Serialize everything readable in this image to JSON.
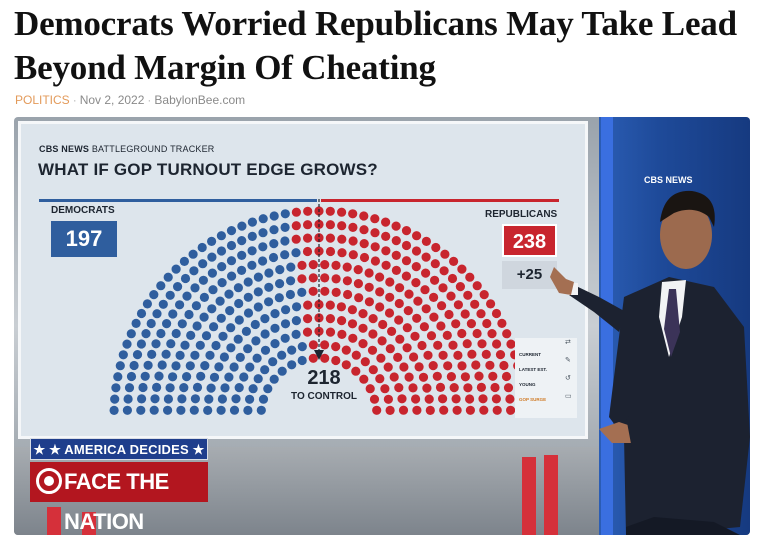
{
  "article": {
    "headline": "Democrats Worried Republicans May Take Lead Beyond Margin Of Cheating",
    "category": "POLITICS",
    "date": "Nov 2, 2022",
    "site": "BabylonBee.com"
  },
  "photo": {
    "screen": {
      "logo_brand": "CBS NEWS",
      "logo_tracker": "BATTLEGROUND TRACKER",
      "title": "WHAT IF GOP TURNOUT EDGE GROWS?",
      "democrats_label": "DEMOCRATS",
      "democrats_seats": "197",
      "republicans_label": "REPUBLICANS",
      "republicans_seats": "238",
      "gain": "+25",
      "control_number": "218",
      "control_label": "TO CONTROL",
      "menu": [
        "CURRENT",
        "LATEST EST.",
        "YOUNG",
        "GOP SURGE"
      ]
    },
    "background_logo": "CBS NEWS",
    "banner_top": "★ ★ AMERICA DECIDES ★ ★",
    "banner_show": "FACE THE NATION",
    "colors": {
      "dem_blue": "#2f5e9e",
      "rep_red": "#c8252e",
      "banner_blue": "#1f3e8c",
      "banner_red": "#b3161f"
    }
  },
  "chart_data": {
    "type": "hemicycle",
    "title": "WHAT IF GOP TURNOUT EDGE GROWS?",
    "series": [
      {
        "name": "DEMOCRATS",
        "seats": 197
      },
      {
        "name": "REPUBLICANS",
        "seats": 238
      }
    ],
    "majority": 218,
    "change": "+25"
  }
}
